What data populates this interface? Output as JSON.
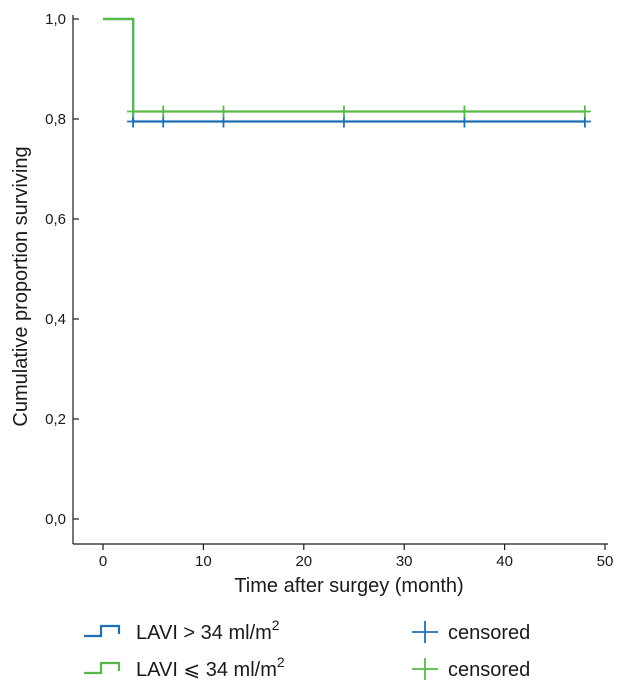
{
  "chart_data": {
    "type": "line",
    "title": "",
    "xlabel": "Time after surgey (month)",
    "ylabel": "Cumulative proportion surviving",
    "xlim": [
      0,
      50
    ],
    "ylim": [
      0,
      1
    ],
    "x_ticks": [
      {
        "value": 0,
        "label": "0"
      },
      {
        "value": 10,
        "label": "10"
      },
      {
        "value": 20,
        "label": "20"
      },
      {
        "value": 30,
        "label": "30"
      },
      {
        "value": 40,
        "label": "40"
      },
      {
        "value": 50,
        "label": "50"
      }
    ],
    "y_ticks": [
      {
        "value": 0.0,
        "label": "0,0"
      },
      {
        "value": 0.2,
        "label": "0,2"
      },
      {
        "value": 0.4,
        "label": "0,4"
      },
      {
        "value": 0.6,
        "label": "0,6"
      },
      {
        "value": 0.8,
        "label": "0,8"
      },
      {
        "value": 1.0,
        "label": "1,0"
      }
    ],
    "grid": false,
    "legend_position": "bottom",
    "series": [
      {
        "key": "gt",
        "legend_prefix": "LAVI > 34 ml/m",
        "legend_sup": "2",
        "color": "#1f6fb4",
        "steps": [
          [
            0,
            1.0
          ],
          [
            3,
            0.795
          ],
          [
            48,
            0.795
          ]
        ],
        "censored_x": [
          3,
          6,
          12,
          24,
          36,
          48
        ],
        "censored_label": "censored"
      },
      {
        "key": "le",
        "legend_prefix": "LAVI ⩽ 34 ml/m",
        "legend_sup": "2",
        "color": "#5ab946",
        "steps": [
          [
            0,
            1.0
          ],
          [
            3,
            0.815
          ],
          [
            48,
            0.815
          ]
        ],
        "censored_x": [
          3,
          6,
          12,
          24,
          36,
          48
        ],
        "censored_label": "censored"
      }
    ]
  }
}
